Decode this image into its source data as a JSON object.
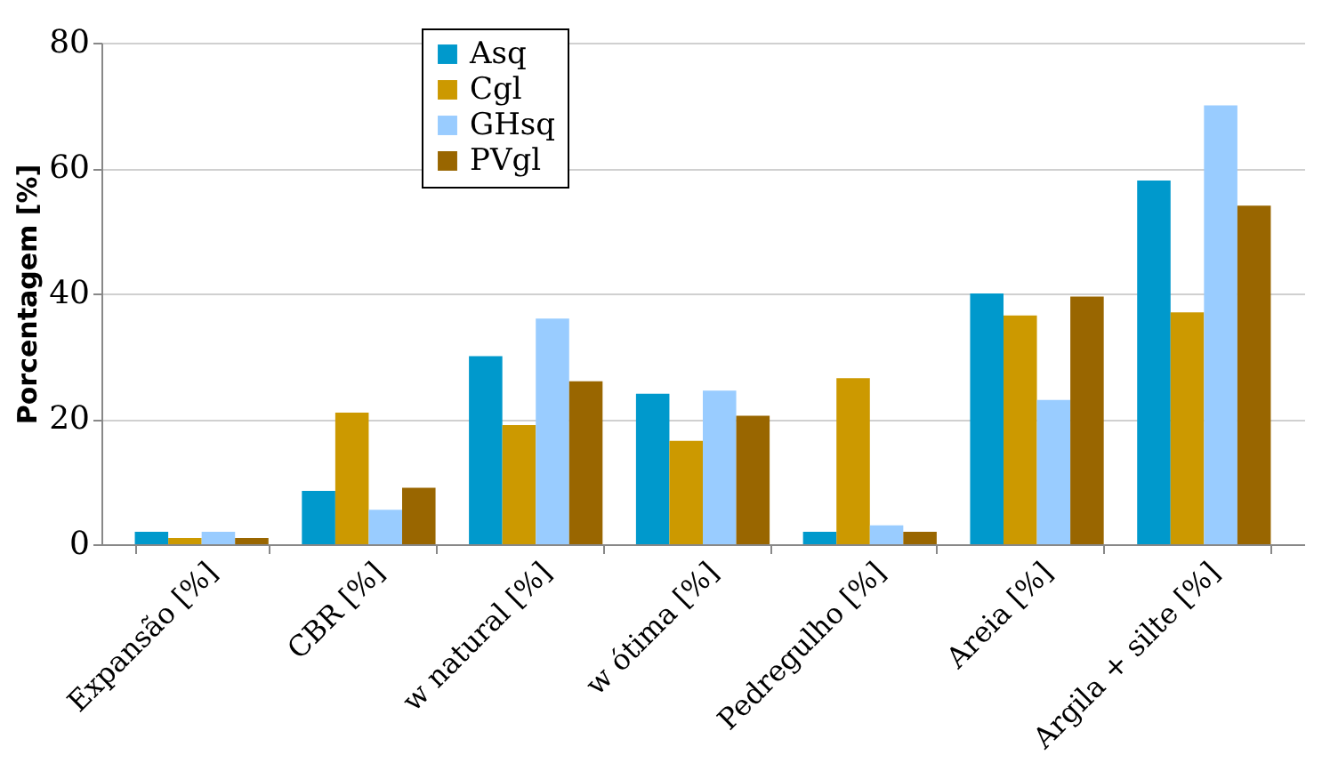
{
  "chart_data": {
    "type": "bar",
    "ylabel": "Porcentagem [%]",
    "categories": [
      "Expansão [%]",
      "CBR [%]",
      "w natural [%]",
      "w ótima [%]",
      "Pedregulho [%]",
      "Areia [%]",
      "Argila + silte [%]"
    ],
    "series": [
      {
        "name": "Asq",
        "color": "#0099cc",
        "values": [
          2,
          8.5,
          30,
          24,
          2,
          40,
          58
        ]
      },
      {
        "name": "Cgl",
        "color": "#cc9900",
        "values": [
          1,
          21,
          19,
          16.5,
          26.5,
          36.5,
          37
        ]
      },
      {
        "name": "GHsq",
        "color": "#99ccff",
        "values": [
          2,
          5.5,
          36,
          24.5,
          3,
          23,
          70
        ]
      },
      {
        "name": "PVgl",
        "color": "#996600",
        "values": [
          1,
          9,
          26,
          20.5,
          2,
          39.5,
          54
        ]
      }
    ],
    "ylim": [
      0,
      80
    ],
    "yticks": [
      0,
      20,
      40,
      60,
      80
    ],
    "grid": "y",
    "legend": "top"
  }
}
